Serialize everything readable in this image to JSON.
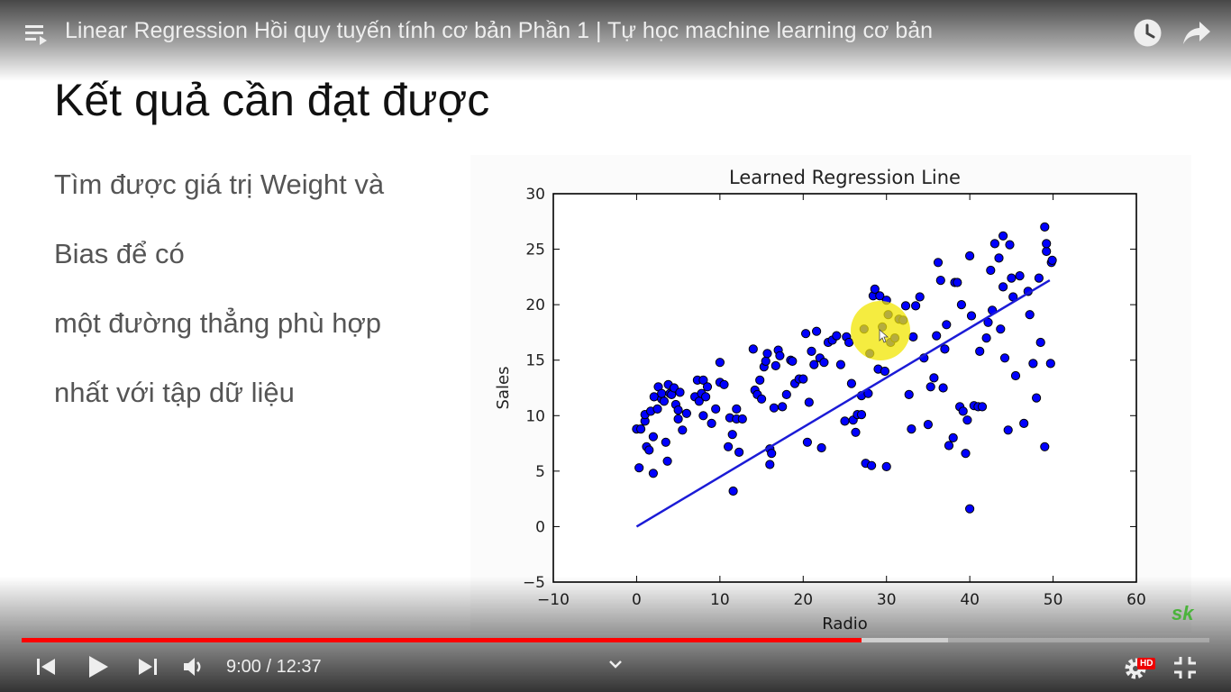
{
  "video": {
    "title": "Linear Regression Hồi quy tuyến tính cơ bản Phần 1 | Tự học machine learning cơ bản",
    "time_display": "9:00 / 12:37",
    "progress_fraction": 0.7068,
    "buffered_fraction": 0.78,
    "hd_label": "HD",
    "logo_text": "sk",
    "accent_color": "#ff0000"
  },
  "slide": {
    "title": "Kết quả cần đạt được",
    "lines": [
      "Tìm được giá trị Weight và",
      "Bias để có",
      "một đường thẳng phù hợp",
      "nhất với tập dữ liệu"
    ]
  },
  "icons": {
    "playlist": "playlist-icon",
    "watch_later": "clock-icon",
    "share": "share-icon",
    "prev": "previous-icon",
    "play": "play-icon",
    "next": "next-icon",
    "volume": "volume-icon",
    "chevron": "chevron-down-icon",
    "settings": "gear-icon",
    "fullscreen_exit": "exit-fullscreen-icon"
  },
  "chart_data": {
    "type": "scatter",
    "title": "Learned Regression Line",
    "xlabel": "Radio",
    "ylabel": "Sales",
    "xlim": [
      -10,
      60
    ],
    "ylim": [
      -5,
      30
    ],
    "xticks": [
      "−10",
      "0",
      "10",
      "20",
      "30",
      "40",
      "50",
      "60"
    ],
    "yticks": [
      "−5",
      "0",
      "5",
      "10",
      "15",
      "20",
      "25",
      "30"
    ],
    "point_color": "#0000ff",
    "line_color": "#1b1bd6",
    "regression_line": {
      "x": [
        0,
        49.6
      ],
      "y": [
        0,
        22.2
      ]
    },
    "points": [
      [
        0,
        8.8
      ],
      [
        0.3,
        5.3
      ],
      [
        0.5,
        8.8
      ],
      [
        1,
        9.5
      ],
      [
        1,
        10.1
      ],
      [
        1.2,
        7.2
      ],
      [
        1.5,
        6.9
      ],
      [
        1.7,
        10.4
      ],
      [
        2,
        4.8
      ],
      [
        2,
        8.1
      ],
      [
        2.1,
        11.7
      ],
      [
        2.5,
        10.6
      ],
      [
        2.6,
        12.6
      ],
      [
        3,
        11.5
      ],
      [
        3,
        12
      ],
      [
        3.3,
        11.3
      ],
      [
        3.5,
        7.6
      ],
      [
        3.7,
        5.9
      ],
      [
        3.8,
        12.8
      ],
      [
        4,
        12
      ],
      [
        4.2,
        11.9
      ],
      [
        4.5,
        12.5
      ],
      [
        4.7,
        11
      ],
      [
        5,
        10.5
      ],
      [
        5,
        9.7
      ],
      [
        5.2,
        12.1
      ],
      [
        5.5,
        8.7
      ],
      [
        6,
        10.2
      ],
      [
        7,
        11.7
      ],
      [
        7.3,
        13.2
      ],
      [
        7.5,
        11.3
      ],
      [
        7.8,
        12
      ],
      [
        8,
        10
      ],
      [
        8,
        13.2
      ],
      [
        8.3,
        11.7
      ],
      [
        8.5,
        12.6
      ],
      [
        9,
        9.3
      ],
      [
        9.5,
        10.6
      ],
      [
        10,
        13
      ],
      [
        10,
        14.8
      ],
      [
        10.5,
        12.8
      ],
      [
        11,
        7.2
      ],
      [
        11.2,
        9.8
      ],
      [
        11.5,
        8.3
      ],
      [
        11.6,
        3.2
      ],
      [
        12,
        10.6
      ],
      [
        12,
        9.7
      ],
      [
        12.3,
        6.7
      ],
      [
        12.7,
        9.7
      ],
      [
        14,
        16
      ],
      [
        14.2,
        12.3
      ],
      [
        14.5,
        11.9
      ],
      [
        14.8,
        13.2
      ],
      [
        15,
        11.5
      ],
      [
        15.3,
        14.4
      ],
      [
        15.5,
        14.9
      ],
      [
        15.7,
        15.6
      ],
      [
        16,
        7
      ],
      [
        16,
        5.6
      ],
      [
        16.2,
        6.6
      ],
      [
        16.5,
        10.7
      ],
      [
        16.7,
        14.5
      ],
      [
        17,
        15.9
      ],
      [
        17.2,
        15.4
      ],
      [
        17.5,
        10.8
      ],
      [
        18,
        11.9
      ],
      [
        18.5,
        15
      ],
      [
        18.7,
        14.9
      ],
      [
        19,
        12.9
      ],
      [
        19.5,
        13.3
      ],
      [
        20,
        13.3
      ],
      [
        20.3,
        17.4
      ],
      [
        20.5,
        7.6
      ],
      [
        20.7,
        11.2
      ],
      [
        21,
        15.8
      ],
      [
        21.3,
        14.6
      ],
      [
        21.6,
        17.6
      ],
      [
        22,
        15.2
      ],
      [
        22.2,
        7.1
      ],
      [
        22.5,
        14.8
      ],
      [
        23,
        16.6
      ],
      [
        23.5,
        16.8
      ],
      [
        24,
        17.2
      ],
      [
        24.5,
        14.6
      ],
      [
        25,
        9.5
      ],
      [
        25.2,
        17.1
      ],
      [
        25.5,
        16.6
      ],
      [
        25.8,
        12.9
      ],
      [
        26,
        9.6
      ],
      [
        26.3,
        8.5
      ],
      [
        26.5,
        10.1
      ],
      [
        27,
        10.1
      ],
      [
        27,
        11.8
      ],
      [
        27.3,
        17.8
      ],
      [
        27.5,
        5.7
      ],
      [
        27.8,
        12
      ],
      [
        28,
        15.6
      ],
      [
        28.2,
        5.5
      ],
      [
        28.4,
        20.8
      ],
      [
        28.6,
        21.4
      ],
      [
        29,
        14.2
      ],
      [
        29.2,
        20.8
      ],
      [
        29.5,
        18
      ],
      [
        29.8,
        14
      ],
      [
        30,
        5.4
      ],
      [
        30,
        20.4
      ],
      [
        30.2,
        19.1
      ],
      [
        30.5,
        16.6
      ],
      [
        31,
        17
      ],
      [
        31.5,
        18.7
      ],
      [
        32,
        18.6
      ],
      [
        32.3,
        19.9
      ],
      [
        32.7,
        11.9
      ],
      [
        33,
        8.8
      ],
      [
        33.2,
        17.1
      ],
      [
        33.5,
        19.9
      ],
      [
        34,
        20.7
      ],
      [
        34.5,
        15.2
      ],
      [
        35,
        9.2
      ],
      [
        35.3,
        12.6
      ],
      [
        35.7,
        13.4
      ],
      [
        36,
        17.2
      ],
      [
        36.2,
        23.8
      ],
      [
        36.5,
        22.2
      ],
      [
        36.8,
        12.5
      ],
      [
        37,
        16
      ],
      [
        37.2,
        18.2
      ],
      [
        37.5,
        7.3
      ],
      [
        38,
        8
      ],
      [
        38.2,
        22
      ],
      [
        38.5,
        22
      ],
      [
        38.8,
        10.8
      ],
      [
        39,
        20
      ],
      [
        39.2,
        10.4
      ],
      [
        39.5,
        6.6
      ],
      [
        39.7,
        9.6
      ],
      [
        40,
        24.4
      ],
      [
        40,
        1.6
      ],
      [
        40.2,
        19
      ],
      [
        40.5,
        10.9
      ],
      [
        41,
        10.8
      ],
      [
        41.2,
        15.8
      ],
      [
        41.5,
        10.8
      ],
      [
        42,
        17
      ],
      [
        42.2,
        18.4
      ],
      [
        42.5,
        23.1
      ],
      [
        42.7,
        19.5
      ],
      [
        43,
        25.5
      ],
      [
        43.5,
        24.2
      ],
      [
        43.7,
        17.8
      ],
      [
        44,
        21.6
      ],
      [
        44,
        26.2
      ],
      [
        44.2,
        15.2
      ],
      [
        44.6,
        8.7
      ],
      [
        44.8,
        25.4
      ],
      [
        45,
        22.4
      ],
      [
        45.2,
        20.7
      ],
      [
        45.5,
        13.6
      ],
      [
        46,
        22.6
      ],
      [
        46.5,
        9.3
      ],
      [
        47,
        21.2
      ],
      [
        47.2,
        19.1
      ],
      [
        47.6,
        14.7
      ],
      [
        48,
        11.6
      ],
      [
        48.3,
        22.4
      ],
      [
        48.5,
        16.6
      ],
      [
        49,
        27
      ],
      [
        49.2,
        24.8
      ],
      [
        49.2,
        25.5
      ],
      [
        49,
        7.2
      ],
      [
        49.7,
        14.7
      ],
      [
        49.8,
        23.8
      ],
      [
        49.9,
        24
      ]
    ]
  }
}
